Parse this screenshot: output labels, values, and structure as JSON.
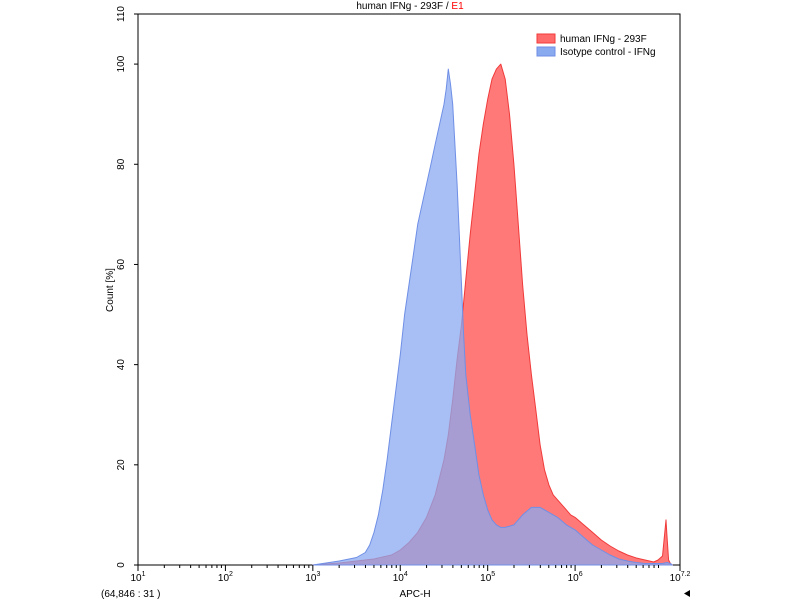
{
  "chart_data": {
    "type": "area",
    "title": {
      "prefix": "human IFNg - 293F",
      "separator": " / ",
      "suffix": "E1",
      "suffix_color": "#ff0000"
    },
    "xlabel": "APC-H",
    "ylabel": "Count [%]",
    "x_scale": "log10",
    "xlim": [
      10,
      15848931.9
    ],
    "ylim": [
      0,
      110
    ],
    "x_ticks": [
      {
        "base": "10",
        "exp": "1",
        "value": 10
      },
      {
        "base": "10",
        "exp": "2",
        "value": 100
      },
      {
        "base": "10",
        "exp": "3",
        "value": 1000
      },
      {
        "base": "10",
        "exp": "4",
        "value": 10000
      },
      {
        "base": "10",
        "exp": "5",
        "value": 100000
      },
      {
        "base": "10",
        "exp": "6",
        "value": 1000000
      },
      {
        "base": "10",
        "exp": "7.2",
        "value": 15848931.9
      }
    ],
    "y_ticks": [
      "0",
      "20",
      "40",
      "60",
      "80",
      "100",
      "110"
    ],
    "y_tick_values": [
      0,
      20,
      40,
      60,
      80,
      100,
      110
    ],
    "cursor_readout": "(64,846 : 31 )",
    "legend_position": "top-right",
    "series": [
      {
        "name": "human IFNg - 293F",
        "color": "#f03a3a",
        "fill": "#ff6a6a",
        "fill_opacity": 0.9,
        "x": [
          1000,
          2000,
          3162,
          5012,
          7943,
          10000,
          12589,
          15849,
          19953,
          25119,
          31623,
          35481,
          39811,
          44668,
          50119,
          56234,
          63096,
          70795,
          79433,
          89125,
          100000,
          112202,
          125893,
          141254,
          158489,
          177828,
          199526,
          223872,
          251189,
          281838,
          316228,
          354813,
          398107,
          446684,
          501187,
          562341,
          630957,
          707946,
          794328,
          891251,
          1000000,
          1258925,
          1584893,
          1995262,
          2511886,
          3162278,
          3981072,
          5011872,
          6309573,
          7943282,
          8912509,
          10000000,
          10965000,
          11220185,
          11748976,
          12302688,
          13000000
        ],
        "y": [
          0,
          0.4,
          0.8,
          1.2,
          2.0,
          3.0,
          4.5,
          6.5,
          9.5,
          14,
          21,
          26,
          33,
          41,
          48,
          57,
          66,
          74,
          82,
          88,
          93,
          97,
          99,
          100,
          97,
          90,
          80,
          68,
          56,
          46,
          38,
          31,
          24,
          19,
          16,
          14,
          13,
          12,
          11,
          10,
          9.5,
          8.0,
          6.5,
          5.0,
          3.8,
          2.8,
          2.0,
          1.4,
          1.0,
          0.6,
          1.0,
          1.8,
          9.0,
          6.0,
          1.0,
          0.3,
          0
        ]
      },
      {
        "name": "Isotype control - IFNg",
        "color": "#6f8fe6",
        "fill": "#8aaaf0",
        "fill_opacity": 0.75,
        "x": [
          1000,
          2000,
          3162,
          3981,
          4467,
          5012,
          5623,
          6310,
          7079,
          7943,
          8913,
          10000,
          11220,
          12589,
          14125,
          15849,
          17783,
          19953,
          22387,
          25119,
          28184,
          31623,
          33497,
          35481,
          37584,
          39811,
          42170,
          44668,
          47315,
          50119,
          53088,
          56234,
          63096,
          70795,
          79433,
          89125,
          100000,
          112202,
          125893,
          141254,
          158489,
          199526,
          251189,
          316228,
          398107,
          501187,
          630957,
          794328,
          1000000,
          1258925,
          1584893,
          1995262,
          2511886,
          3162278,
          3981072,
          5011872,
          6309573,
          7943282,
          10000000,
          11220185,
          12302688,
          13000000
        ],
        "y": [
          0,
          0.8,
          1.5,
          2.5,
          4.0,
          6.5,
          10,
          15,
          21,
          28,
          35,
          42,
          50,
          56,
          62,
          68,
          72,
          76,
          80,
          84,
          88,
          92,
          95,
          99,
          96,
          92,
          84,
          76,
          66,
          56,
          46,
          38,
          30,
          24,
          18,
          14,
          11,
          9.0,
          8.0,
          7.5,
          7.5,
          8.0,
          10,
          11.5,
          11.5,
          10.5,
          9.5,
          8.0,
          7.0,
          5.5,
          4.0,
          3.0,
          2.0,
          1.2,
          0.8,
          0.5,
          0.3,
          0.3,
          0.3,
          0.5,
          0.3,
          0
        ]
      }
    ]
  }
}
